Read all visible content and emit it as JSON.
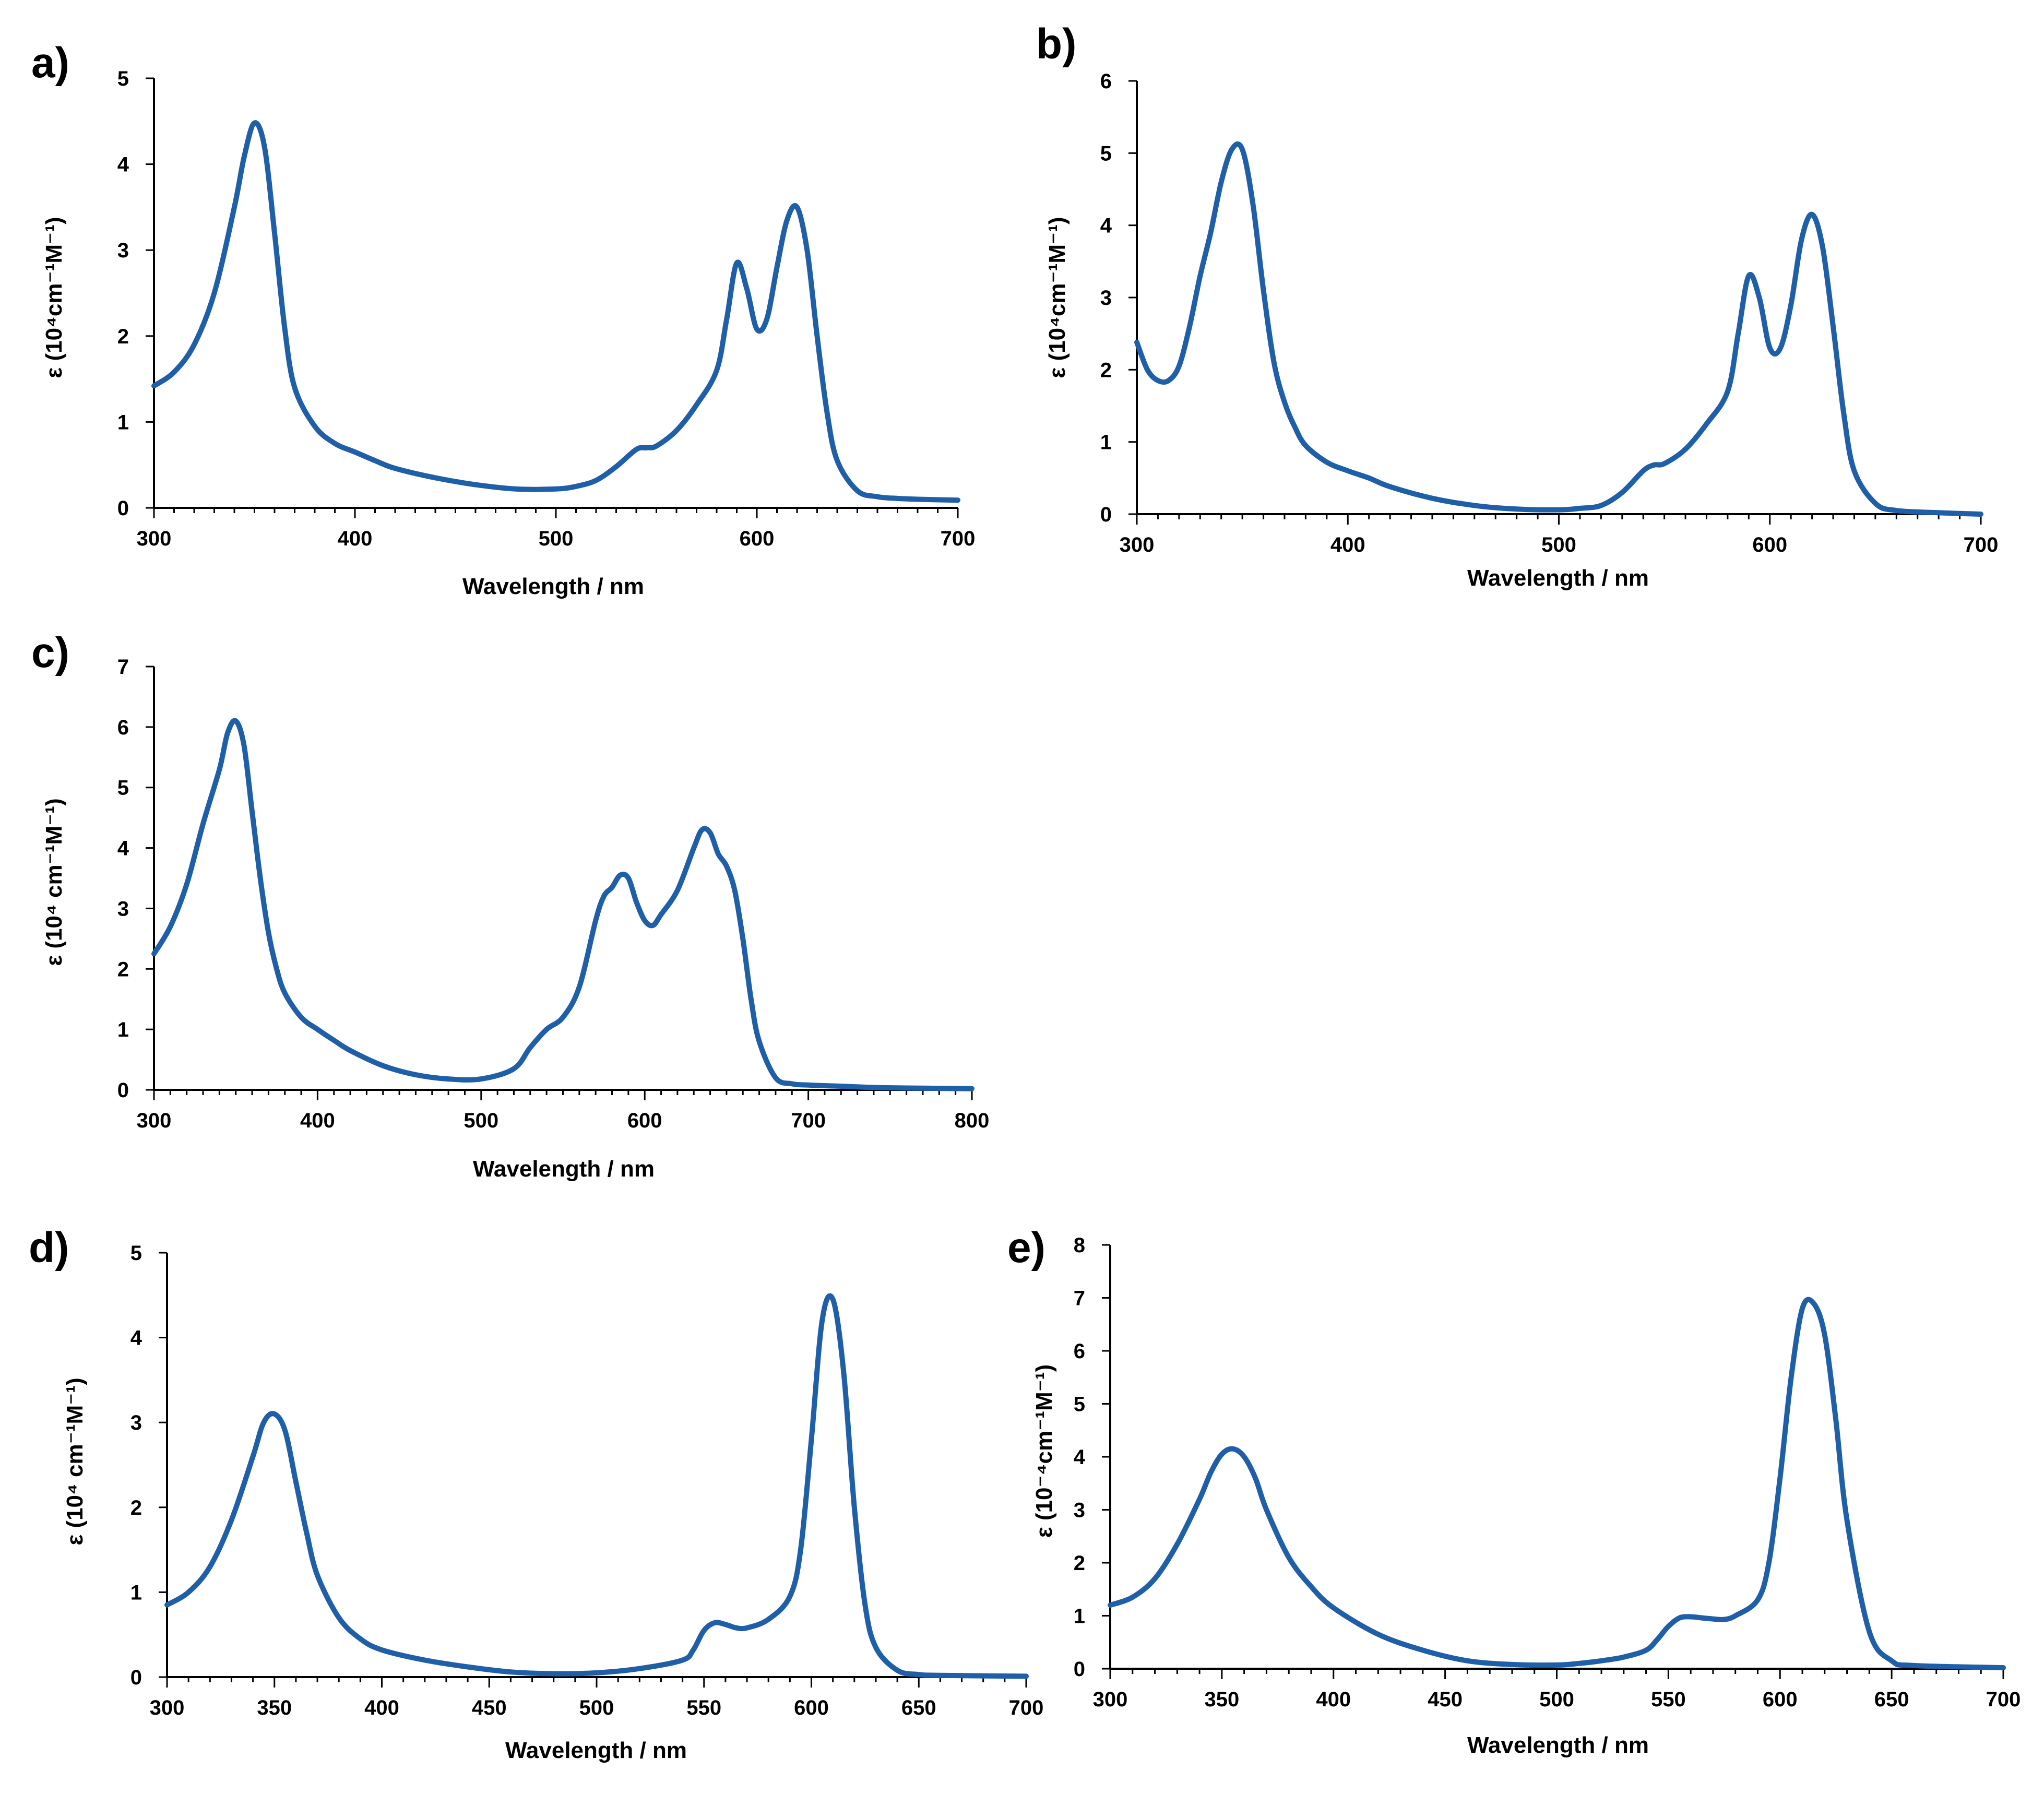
{
  "chart_data": [
    {
      "panel": "a)",
      "type": "line",
      "xlabel": "Wavelength / nm",
      "ylabel": "ε (10⁴cm⁻¹M⁻¹)",
      "xlim": [
        300,
        700
      ],
      "ylim": [
        0,
        5
      ],
      "xticks": [
        300,
        400,
        500,
        600,
        700
      ],
      "yticks": [
        0,
        1,
        2,
        3,
        4,
        5
      ],
      "minor_xstep": 10,
      "color": "#1f5fa8",
      "x": [
        300,
        310,
        320,
        330,
        340,
        345,
        350,
        355,
        360,
        365,
        370,
        380,
        390,
        400,
        410,
        420,
        440,
        460,
        480,
        500,
        510,
        520,
        530,
        540,
        545,
        550,
        560,
        570,
        580,
        585,
        590,
        595,
        600,
        605,
        610,
        615,
        620,
        625,
        630,
        635,
        640,
        650,
        660,
        670,
        680,
        700
      ],
      "y": [
        1.42,
        1.58,
        1.9,
        2.5,
        3.5,
        4.1,
        4.48,
        4.2,
        3.2,
        2.1,
        1.4,
        0.95,
        0.75,
        0.65,
        0.55,
        0.46,
        0.35,
        0.27,
        0.22,
        0.22,
        0.25,
        0.32,
        0.48,
        0.68,
        0.7,
        0.72,
        0.9,
        1.2,
        1.6,
        2.2,
        2.85,
        2.55,
        2.08,
        2.2,
        2.8,
        3.35,
        3.5,
        3.0,
        2.0,
        1.1,
        0.55,
        0.2,
        0.13,
        0.11,
        0.1,
        0.09
      ]
    },
    {
      "panel": "b)",
      "type": "line",
      "xlabel": "Wavelength / nm",
      "ylabel": "ε (10⁴cm⁻¹M⁻¹)",
      "xlim": [
        300,
        700
      ],
      "ylim": [
        0,
        6
      ],
      "xticks": [
        300,
        400,
        500,
        600,
        700
      ],
      "yticks": [
        0,
        1,
        2,
        3,
        4,
        5,
        6
      ],
      "minor_xstep": 10,
      "color": "#1f5fa8",
      "x": [
        300,
        305,
        310,
        315,
        320,
        325,
        330,
        335,
        340,
        345,
        350,
        355,
        360,
        365,
        370,
        375,
        380,
        390,
        400,
        410,
        420,
        440,
        460,
        480,
        500,
        510,
        520,
        530,
        540,
        545,
        550,
        560,
        570,
        580,
        585,
        590,
        595,
        600,
        605,
        610,
        615,
        620,
        625,
        630,
        635,
        640,
        650,
        660,
        680,
        700
      ],
      "y": [
        2.38,
        2.0,
        1.85,
        1.85,
        2.05,
        2.6,
        3.3,
        3.9,
        4.6,
        5.05,
        5.05,
        4.3,
        3.1,
        2.1,
        1.55,
        1.2,
        0.95,
        0.72,
        0.6,
        0.5,
        0.38,
        0.22,
        0.12,
        0.07,
        0.06,
        0.08,
        0.12,
        0.3,
        0.6,
        0.68,
        0.7,
        0.9,
        1.25,
        1.7,
        2.5,
        3.3,
        3.0,
        2.3,
        2.3,
        2.9,
        3.8,
        4.15,
        3.7,
        2.6,
        1.4,
        0.6,
        0.15,
        0.05,
        0.02,
        0.0
      ]
    },
    {
      "panel": "c)",
      "type": "line",
      "xlabel": "Wavelength / nm",
      "ylabel": "ε (10⁴ cm⁻¹M⁻¹)",
      "xlim": [
        300,
        800
      ],
      "ylim": [
        0,
        7
      ],
      "xticks": [
        300,
        400,
        500,
        600,
        700,
        800
      ],
      "yticks": [
        0,
        1,
        2,
        3,
        4,
        5,
        6,
        7
      ],
      "minor_xstep": 10,
      "color": "#1f5fa8",
      "x": [
        300,
        310,
        320,
        330,
        340,
        345,
        350,
        355,
        360,
        365,
        370,
        375,
        380,
        390,
        400,
        410,
        420,
        440,
        460,
        480,
        500,
        520,
        530,
        540,
        550,
        560,
        570,
        575,
        580,
        585,
        590,
        595,
        600,
        605,
        610,
        620,
        630,
        635,
        640,
        645,
        650,
        655,
        660,
        665,
        670,
        680,
        690,
        700,
        720,
        740,
        760,
        800
      ],
      "y": [
        2.25,
        2.7,
        3.4,
        4.4,
        5.3,
        5.9,
        6.1,
        5.7,
        4.6,
        3.5,
        2.6,
        2.0,
        1.6,
        1.2,
        1.0,
        0.82,
        0.65,
        0.4,
        0.25,
        0.18,
        0.18,
        0.35,
        0.7,
        1.0,
        1.2,
        1.7,
        2.8,
        3.2,
        3.35,
        3.55,
        3.5,
        3.1,
        2.8,
        2.72,
        2.9,
        3.3,
        4.0,
        4.3,
        4.25,
        3.9,
        3.7,
        3.3,
        2.5,
        1.5,
        0.8,
        0.2,
        0.1,
        0.08,
        0.06,
        0.04,
        0.03,
        0.02
      ]
    },
    {
      "panel": "d)",
      "type": "line",
      "xlabel": "Wavelength / nm",
      "ylabel": "ε (10⁴ cm⁻¹M⁻¹)",
      "xlim": [
        300,
        700
      ],
      "ylim": [
        0,
        5
      ],
      "xticks": [
        300,
        350,
        400,
        450,
        500,
        550,
        600,
        650,
        700
      ],
      "yticks": [
        0,
        1,
        2,
        3,
        4,
        5
      ],
      "minor_xstep": 10,
      "color": "#1f5fa8",
      "x": [
        300,
        310,
        320,
        330,
        340,
        345,
        350,
        355,
        360,
        365,
        370,
        380,
        390,
        400,
        420,
        440,
        460,
        480,
        500,
        520,
        540,
        545,
        550,
        555,
        560,
        565,
        570,
        580,
        590,
        595,
        600,
        605,
        610,
        615,
        620,
        625,
        630,
        640,
        650,
        660,
        700
      ],
      "y": [
        0.85,
        1.0,
        1.3,
        1.85,
        2.6,
        3.0,
        3.1,
        2.9,
        2.3,
        1.7,
        1.2,
        0.7,
        0.45,
        0.32,
        0.2,
        0.12,
        0.06,
        0.04,
        0.05,
        0.1,
        0.2,
        0.32,
        0.55,
        0.64,
        0.62,
        0.58,
        0.58,
        0.68,
        0.95,
        1.5,
        2.8,
        4.2,
        4.45,
        3.6,
        2.0,
        0.85,
        0.35,
        0.08,
        0.03,
        0.02,
        0.01
      ]
    },
    {
      "panel": "e)",
      "type": "line",
      "xlabel": "Wavelength / nm",
      "ylabel": "ε (10⁻⁴cm⁻¹M⁻¹)",
      "xlim": [
        300,
        700
      ],
      "ylim": [
        0,
        8
      ],
      "xticks": [
        300,
        350,
        400,
        450,
        500,
        550,
        600,
        650,
        700
      ],
      "yticks": [
        0,
        1,
        2,
        3,
        4,
        5,
        6,
        7,
        8
      ],
      "minor_xstep": 10,
      "color": "#1f5fa8",
      "x": [
        300,
        310,
        320,
        330,
        340,
        345,
        350,
        355,
        360,
        365,
        370,
        380,
        390,
        400,
        420,
        440,
        460,
        480,
        500,
        510,
        520,
        530,
        540,
        545,
        550,
        555,
        560,
        565,
        570,
        575,
        580,
        590,
        595,
        600,
        605,
        610,
        615,
        620,
        625,
        630,
        640,
        650,
        660,
        700
      ],
      "y": [
        1.2,
        1.35,
        1.7,
        2.35,
        3.2,
        3.7,
        4.05,
        4.15,
        4.0,
        3.6,
        3.0,
        2.1,
        1.55,
        1.15,
        0.65,
        0.35,
        0.15,
        0.08,
        0.07,
        0.1,
        0.15,
        0.22,
        0.35,
        0.55,
        0.8,
        0.96,
        0.98,
        0.96,
        0.94,
        0.93,
        1.0,
        1.3,
        2.0,
        3.6,
        5.5,
        6.8,
        6.9,
        6.3,
        4.7,
        2.8,
        0.7,
        0.15,
        0.06,
        0.02
      ]
    }
  ]
}
